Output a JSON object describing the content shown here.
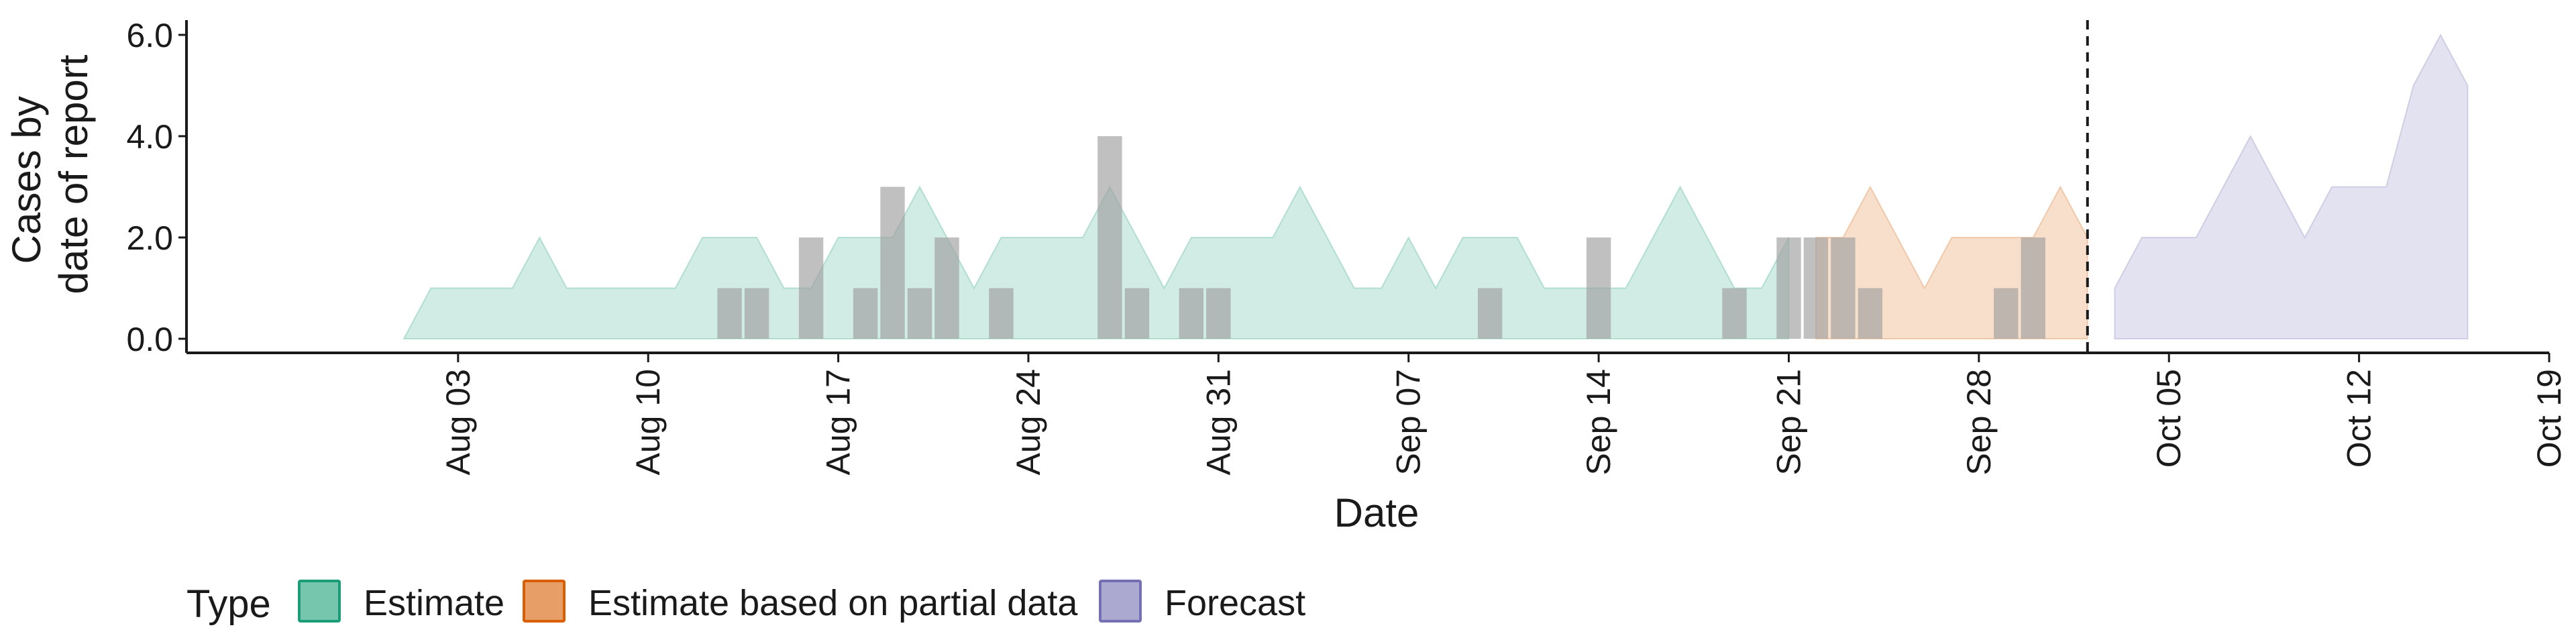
{
  "chart_data": {
    "type": "area",
    "title": "",
    "xlabel": "Date",
    "ylabel_lines": [
      "Cases by",
      "date of report"
    ],
    "ylim": [
      0,
      6
    ],
    "xlim": [
      "2020-07-24",
      "2020-10-19"
    ],
    "y_ticks": [
      0,
      2,
      4,
      6
    ],
    "y_tick_labels": [
      "0.0",
      "2.0",
      "4.0",
      "6.0"
    ],
    "x_ticks": [
      {
        "date": "2020-08-03",
        "label": "Aug 03"
      },
      {
        "date": "2020-08-10",
        "label": "Aug 10"
      },
      {
        "date": "2020-08-17",
        "label": "Aug 17"
      },
      {
        "date": "2020-08-24",
        "label": "Aug 24"
      },
      {
        "date": "2020-08-31",
        "label": "Aug 31"
      },
      {
        "date": "2020-09-07",
        "label": "Sep 07"
      },
      {
        "date": "2020-09-14",
        "label": "Sep 14"
      },
      {
        "date": "2020-09-21",
        "label": "Sep 21"
      },
      {
        "date": "2020-09-28",
        "label": "Sep 28"
      },
      {
        "date": "2020-10-05",
        "label": "Oct 05"
      },
      {
        "date": "2020-10-12",
        "label": "Oct 12"
      },
      {
        "date": "2020-10-19",
        "label": "Oct 19"
      }
    ],
    "vline_date": "2020-10-02",
    "series": [
      {
        "name": "Estimate",
        "color": "#1B9E77",
        "points": [
          [
            "2020-08-01",
            0
          ],
          [
            "2020-08-02",
            1
          ],
          [
            "2020-08-03",
            1
          ],
          [
            "2020-08-04",
            1
          ],
          [
            "2020-08-05",
            1
          ],
          [
            "2020-08-06",
            2
          ],
          [
            "2020-08-07",
            1
          ],
          [
            "2020-08-08",
            1
          ],
          [
            "2020-08-09",
            1
          ],
          [
            "2020-08-10",
            1
          ],
          [
            "2020-08-11",
            1
          ],
          [
            "2020-08-12",
            2
          ],
          [
            "2020-08-13",
            2
          ],
          [
            "2020-08-14",
            2
          ],
          [
            "2020-08-15",
            1
          ],
          [
            "2020-08-16",
            1
          ],
          [
            "2020-08-17",
            2
          ],
          [
            "2020-08-18",
            2
          ],
          [
            "2020-08-19",
            2
          ],
          [
            "2020-08-20",
            3
          ],
          [
            "2020-08-21",
            2
          ],
          [
            "2020-08-22",
            1
          ],
          [
            "2020-08-23",
            2
          ],
          [
            "2020-08-24",
            2
          ],
          [
            "2020-08-25",
            2
          ],
          [
            "2020-08-26",
            2
          ],
          [
            "2020-08-27",
            3
          ],
          [
            "2020-08-28",
            2
          ],
          [
            "2020-08-29",
            1
          ],
          [
            "2020-08-30",
            2
          ],
          [
            "2020-08-31",
            2
          ],
          [
            "2020-09-01",
            2
          ],
          [
            "2020-09-02",
            2
          ],
          [
            "2020-09-03",
            3
          ],
          [
            "2020-09-04",
            2
          ],
          [
            "2020-09-05",
            1
          ],
          [
            "2020-09-06",
            1
          ],
          [
            "2020-09-07",
            2
          ],
          [
            "2020-09-08",
            1
          ],
          [
            "2020-09-09",
            2
          ],
          [
            "2020-09-10",
            2
          ],
          [
            "2020-09-11",
            2
          ],
          [
            "2020-09-12",
            1
          ],
          [
            "2020-09-13",
            1
          ],
          [
            "2020-09-14",
            1
          ],
          [
            "2020-09-15",
            1
          ],
          [
            "2020-09-16",
            2
          ],
          [
            "2020-09-17",
            3
          ],
          [
            "2020-09-18",
            2
          ],
          [
            "2020-09-19",
            1
          ],
          [
            "2020-09-20",
            1
          ],
          [
            "2020-09-21",
            2
          ],
          [
            "2020-09-21",
            0
          ]
        ]
      },
      {
        "name": "Estimate based on partial data",
        "color": "#D95F02",
        "points": [
          [
            "2020-09-22",
            0
          ],
          [
            "2020-09-22",
            2
          ],
          [
            "2020-09-23",
            2
          ],
          [
            "2020-09-24",
            3
          ],
          [
            "2020-09-25",
            2
          ],
          [
            "2020-09-26",
            1
          ],
          [
            "2020-09-27",
            2
          ],
          [
            "2020-09-28",
            2
          ],
          [
            "2020-09-29",
            2
          ],
          [
            "2020-09-30",
            2
          ],
          [
            "2020-10-01",
            3
          ],
          [
            "2020-10-02",
            2
          ],
          [
            "2020-10-02",
            0
          ]
        ]
      },
      {
        "name": "Forecast",
        "color": "#7570B3",
        "points": [
          [
            "2020-10-03",
            0
          ],
          [
            "2020-10-03",
            1
          ],
          [
            "2020-10-04",
            2
          ],
          [
            "2020-10-05",
            2
          ],
          [
            "2020-10-06",
            2
          ],
          [
            "2020-10-07",
            3
          ],
          [
            "2020-10-08",
            4
          ],
          [
            "2020-10-09",
            3
          ],
          [
            "2020-10-10",
            2
          ],
          [
            "2020-10-11",
            3
          ],
          [
            "2020-10-12",
            3
          ],
          [
            "2020-10-13",
            3
          ],
          [
            "2020-10-14",
            5
          ],
          [
            "2020-10-15",
            6
          ],
          [
            "2020-10-16",
            5
          ],
          [
            "2020-10-16",
            0
          ]
        ]
      }
    ],
    "bars": [
      {
        "date": "2020-08-13",
        "value": 1
      },
      {
        "date": "2020-08-14",
        "value": 1
      },
      {
        "date": "2020-08-16",
        "value": 2
      },
      {
        "date": "2020-08-18",
        "value": 1
      },
      {
        "date": "2020-08-19",
        "value": 3
      },
      {
        "date": "2020-08-20",
        "value": 1
      },
      {
        "date": "2020-08-21",
        "value": 2
      },
      {
        "date": "2020-08-23",
        "value": 1
      },
      {
        "date": "2020-08-27",
        "value": 4
      },
      {
        "date": "2020-08-28",
        "value": 1
      },
      {
        "date": "2020-08-30",
        "value": 1
      },
      {
        "date": "2020-08-31",
        "value": 1
      },
      {
        "date": "2020-09-10",
        "value": 1
      },
      {
        "date": "2020-09-14",
        "value": 2
      },
      {
        "date": "2020-09-19",
        "value": 1
      },
      {
        "date": "2020-09-21",
        "value": 2
      },
      {
        "date": "2020-09-22",
        "value": 2
      },
      {
        "date": "2020-09-23",
        "value": 2
      },
      {
        "date": "2020-09-24",
        "value": 1
      },
      {
        "date": "2020-09-29",
        "value": 1
      },
      {
        "date": "2020-09-30",
        "value": 2
      }
    ],
    "bar_color": "#9e9e9e",
    "legend": {
      "position": "bottom",
      "title": "Type",
      "items": [
        {
          "label": "Estimate",
          "color": "#1B9E77"
        },
        {
          "label": "Estimate based on partial data",
          "color": "#D95F02"
        },
        {
          "label": "Forecast",
          "color": "#7570B3"
        }
      ]
    },
    "grid": false
  }
}
